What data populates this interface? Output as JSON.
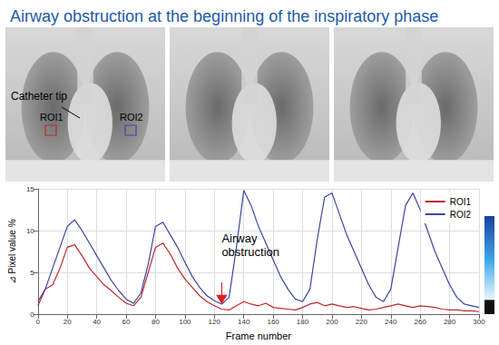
{
  "chart_data": {
    "type": "line",
    "title": "Airway obstruction at the beginning of the inspiratory phase",
    "x_label": "Frame number",
    "y_label": "⊿ Pixel value %",
    "x": [
      0,
      5,
      10,
      15,
      20,
      25,
      30,
      35,
      40,
      45,
      50,
      55,
      60,
      65,
      70,
      75,
      80,
      85,
      90,
      95,
      100,
      105,
      110,
      115,
      120,
      125,
      130,
      135,
      140,
      145,
      150,
      155,
      160,
      165,
      170,
      175,
      180,
      185,
      190,
      195,
      200,
      205,
      210,
      215,
      220,
      225,
      230,
      235,
      240,
      245,
      250,
      255,
      260,
      265,
      270,
      275,
      280,
      285,
      290,
      295,
      300
    ],
    "series": [
      {
        "name": "ROI1",
        "color": "#c0282a",
        "values": [
          1,
          3,
          3.5,
          5.5,
          8,
          8.3,
          7,
          5.5,
          4.5,
          3.5,
          2.8,
          2,
          1.3,
          1,
          2,
          5,
          8,
          8.5,
          7.2,
          5.5,
          4.2,
          3.2,
          2.2,
          1.5,
          1,
          0.6,
          0.5,
          1,
          1.5,
          1.2,
          1,
          1.3,
          0.8,
          0.7,
          0.6,
          0.5,
          0.8,
          1.2,
          1.4,
          1,
          1.2,
          1,
          0.8,
          0.9,
          0.7,
          0.5,
          0.6,
          0.8,
          1,
          1.2,
          1,
          0.8,
          1,
          0.9,
          0.8,
          0.6,
          0.5,
          0.5,
          0.4,
          0.4,
          0.3
        ]
      },
      {
        "name": "ROI2",
        "color": "#3c46a0",
        "values": [
          1.5,
          3,
          5.5,
          8,
          10.5,
          11.3,
          10,
          8.5,
          7,
          5.5,
          4,
          2.8,
          1.8,
          1.3,
          2.5,
          6,
          10.5,
          11,
          9.5,
          8,
          6.2,
          4.5,
          3.2,
          2.2,
          1.6,
          1.2,
          2,
          8,
          14.8,
          13,
          10.5,
          8.5,
          6.5,
          4.5,
          3,
          1.8,
          1.5,
          3,
          9,
          14,
          14.5,
          12,
          9.5,
          7.5,
          5.5,
          3.5,
          2,
          1.5,
          3,
          8,
          13,
          14.5,
          12.5,
          10,
          7.5,
          5.5,
          3.5,
          2,
          1.2,
          1,
          0.8
        ]
      }
    ],
    "xlim": [
      0,
      300
    ],
    "xticks": [
      0,
      20,
      40,
      60,
      80,
      100,
      120,
      140,
      160,
      180,
      200,
      220,
      240,
      260,
      280,
      300
    ],
    "ylim": [
      0,
      15
    ],
    "yticks": [
      0,
      5,
      10,
      15
    ],
    "grid": true,
    "legend": "upper right",
    "annotations": [
      {
        "text": "Airway obstruction",
        "x": 125,
        "y": 1.4
      }
    ],
    "image_annotations": [
      "Catheter tip"
    ]
  }
}
